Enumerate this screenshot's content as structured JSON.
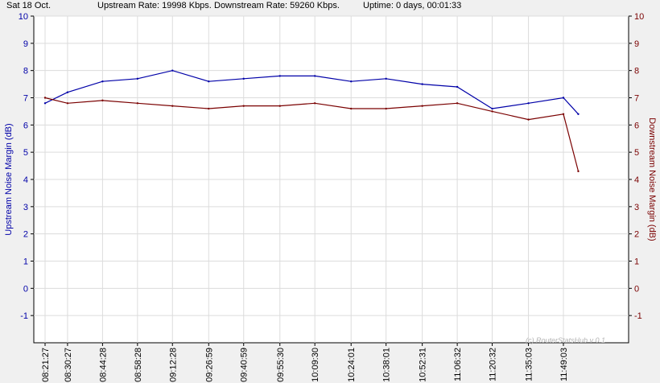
{
  "status": {
    "date": "Sat 18 Oct.",
    "upstream": "Upstream Rate: 19998 Kbps.",
    "downstream": "Downstream Rate: 59260 Kbps.",
    "uptime": "Uptime: 0 days, 00:01:33"
  },
  "colors": {
    "upstream": "#0000a8",
    "downstream": "#7a0000",
    "grid": "#dcdcdc",
    "plot_bg": "#ffffff",
    "frame_bg": "#f0f0f0"
  },
  "chart_data": {
    "type": "line",
    "title": "",
    "ylabel_left": "Upstream Noise Margin (dB)",
    "ylabel_right": "Downstream Noise Margin (dB)",
    "ylim": [
      -2,
      10
    ],
    "yticks": [
      10,
      9,
      8,
      7,
      6,
      5,
      4,
      3,
      2,
      1,
      0,
      -1
    ],
    "xticks": [
      "08:21:27",
      "08:30:27",
      "08:44:28",
      "08:58:28",
      "09:12:28",
      "09:26:59",
      "09:40:59",
      "09:55:30",
      "10:09:30",
      "10:24:01",
      "10:38:01",
      "10:52:31",
      "11:06:32",
      "11:20:32",
      "11:35:03",
      "11:49:03"
    ],
    "grid": true,
    "watermark": "(c) RouterStatsHub v 0.1",
    "series": [
      {
        "name": "Upstream",
        "axis": "left",
        "x": [
          "08:21:27",
          "08:30:27",
          "08:44:28",
          "08:58:28",
          "09:12:28",
          "09:26:59",
          "09:40:59",
          "09:55:30",
          "10:09:30",
          "10:24:01",
          "10:38:01",
          "10:52:31",
          "11:06:32",
          "11:20:32",
          "11:35:03",
          "11:49:03",
          "11:55:00"
        ],
        "values": [
          6.8,
          7.2,
          7.6,
          7.7,
          8.0,
          7.6,
          7.7,
          7.8,
          7.8,
          7.6,
          7.7,
          7.5,
          7.4,
          6.6,
          6.8,
          7.0,
          6.4
        ]
      },
      {
        "name": "Downstream",
        "axis": "right",
        "x": [
          "08:21:27",
          "08:30:27",
          "08:44:28",
          "08:58:28",
          "09:12:28",
          "09:26:59",
          "09:40:59",
          "09:55:30",
          "10:09:30",
          "10:24:01",
          "10:38:01",
          "10:52:31",
          "11:06:32",
          "11:20:32",
          "11:35:03",
          "11:49:03",
          "11:55:00"
        ],
        "values": [
          7.0,
          6.8,
          6.9,
          6.8,
          6.7,
          6.6,
          6.7,
          6.7,
          6.8,
          6.6,
          6.6,
          6.7,
          6.8,
          6.5,
          6.2,
          6.4,
          4.3
        ]
      }
    ]
  }
}
